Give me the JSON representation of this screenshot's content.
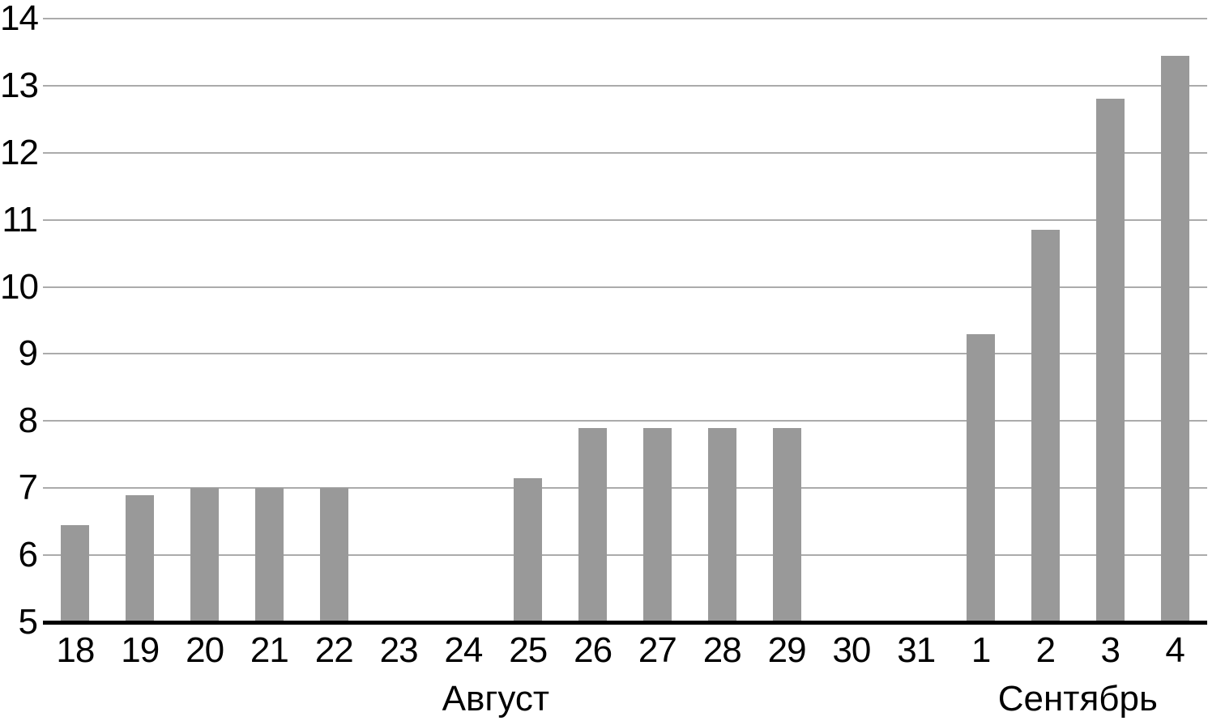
{
  "chart_data": {
    "type": "bar",
    "title": "",
    "xlabel": "",
    "ylabel": "",
    "categories": [
      "18",
      "19",
      "20",
      "21",
      "22",
      "23",
      "24",
      "25",
      "26",
      "27",
      "28",
      "29",
      "30",
      "31",
      "1",
      "2",
      "3",
      "4"
    ],
    "values": [
      6.45,
      6.9,
      7,
      7,
      7,
      null,
      null,
      7.15,
      7.9,
      7.9,
      7.9,
      7.9,
      null,
      null,
      9.3,
      10.85,
      12.8,
      13.45
    ],
    "month_labels": [
      {
        "label": "Август",
        "start_index": 0,
        "end_index": 13
      },
      {
        "label": "Сентябрь",
        "start_index": 14,
        "end_index": 17
      }
    ],
    "ylim": [
      5,
      14
    ],
    "yticks": [
      5,
      6,
      7,
      8,
      9,
      10,
      11,
      12,
      13,
      14
    ],
    "grid": true,
    "legend_position": "none",
    "bar_color": "#999999",
    "gridline_color": "#ababab",
    "axis_color": "#000000",
    "text_color": "#000000",
    "background_color": "#ffffff"
  }
}
